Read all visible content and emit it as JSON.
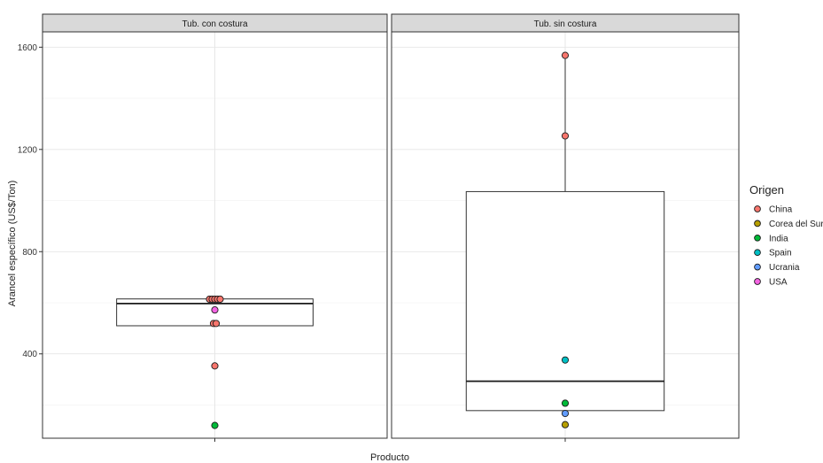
{
  "chart_data": {
    "type": "box",
    "xlabel": "Producto",
    "ylabel": "Arancel específico (US$/Ton)",
    "y_ticks": [
      400,
      800,
      1200,
      1600
    ],
    "ylim": [
      70,
      1660
    ],
    "grid": true,
    "legend": {
      "title": "Origen",
      "placement": "right",
      "entries": [
        {
          "name": "China",
          "color": "#F8766D"
        },
        {
          "name": "Corea del Sur",
          "color": "#B79F00"
        },
        {
          "name": "India",
          "color": "#00BA38"
        },
        {
          "name": "Spain",
          "color": "#00BFC4"
        },
        {
          "name": "Ucrania",
          "color": "#619CFF"
        },
        {
          "name": "USA",
          "color": "#F564E3"
        }
      ]
    },
    "panels": [
      {
        "title": "Tub. con costura",
        "box": {
          "q1": 510,
          "median": 597,
          "q3": 615,
          "whisker_low": 510,
          "whisker_high": 615
        },
        "points": [
          {
            "origin": "China",
            "y": 614,
            "x_offset": -0.06
          },
          {
            "origin": "China",
            "y": 614,
            "x_offset": -0.03
          },
          {
            "origin": "China",
            "y": 614,
            "x_offset": 0.0
          },
          {
            "origin": "China",
            "y": 614,
            "x_offset": 0.03
          },
          {
            "origin": "China",
            "y": 614,
            "x_offset": 0.06
          },
          {
            "origin": "USA",
            "y": 572,
            "x_offset": 0.0
          },
          {
            "origin": "China",
            "y": 519,
            "x_offset": -0.015
          },
          {
            "origin": "China",
            "y": 519,
            "x_offset": 0.015
          },
          {
            "origin": "China",
            "y": 353,
            "x_offset": 0.0
          },
          {
            "origin": "India",
            "y": 120,
            "x_offset": 0.0
          }
        ]
      },
      {
        "title": "Tub. sin costura",
        "box": {
          "q1": 178,
          "median": 293,
          "q3": 1035,
          "whisker_low": 178,
          "whisker_high": 1570
        },
        "points": [
          {
            "origin": "China",
            "y": 1568,
            "x_offset": 0.0
          },
          {
            "origin": "China",
            "y": 1253,
            "x_offset": 0.0
          },
          {
            "origin": "Spain",
            "y": 376,
            "x_offset": 0.0
          },
          {
            "origin": "India",
            "y": 207,
            "x_offset": 0.0
          },
          {
            "origin": "Ucrania",
            "y": 167,
            "x_offset": 0.0
          },
          {
            "origin": "Corea del Sur",
            "y": 123,
            "x_offset": 0.0
          }
        ]
      }
    ]
  }
}
